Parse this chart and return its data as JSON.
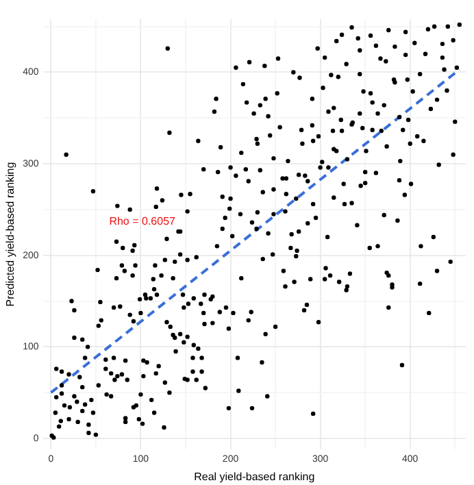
{
  "chart_data": {
    "type": "scatter",
    "xlabel": "Real yield-based ranking",
    "ylabel": "Predicted yield-based ranking",
    "annotations": [
      "Rho = 0.6057"
    ],
    "xlim": [
      -9,
      462
    ],
    "ylim": [
      -12,
      458
    ],
    "xticks": [
      0,
      {
        "value": 50,
        "label": null
      },
      100,
      {
        "value": 150,
        "label": null
      },
      200,
      {
        "value": 250,
        "label": null
      },
      300,
      {
        "value": 350,
        "label": null
      },
      400,
      {
        "value": 450,
        "label": null
      }
    ],
    "yticks": [
      0,
      {
        "value": 50,
        "label": null
      },
      100,
      {
        "value": 150,
        "label": null
      },
      200,
      {
        "value": 250,
        "label": null
      },
      300,
      {
        "value": 350,
        "label": null
      },
      400,
      {
        "value": 450,
        "label": null
      }
    ],
    "grid": true,
    "legend": false,
    "marker": "circle",
    "series": [
      {
        "color": "#000000",
        "x": [
          130,
          206,
          221,
          214,
          184,
          182,
          218,
          132,
          164,
          189,
          17,
          212,
          170,
          186,
          200,
          217,
          206,
          220,
          47,
          118,
          74,
          88,
          117,
          124,
          145,
          155,
          152,
          191,
          200,
          199,
          194,
          211,
          144,
          191,
          238,
          253,
          297,
          305,
          318,
          324,
          335,
          342,
          356,
          362,
          376,
          383,
          395,
          405,
          420,
          427,
          442,
          455,
          448,
          436,
          417,
          395,
          367,
          373,
          344,
          329,
          277,
          270,
          303,
          312,
          320,
          344,
          382,
          397,
          411,
          436,
          438,
          452,
          441,
          430,
          423,
          403,
          383,
          348,
          356,
          291,
          309,
          315,
          323,
          336,
          344,
          358,
          364,
          371,
          388,
          398,
          450,
          226,
          233,
          239,
          252,
          242,
          255,
          244,
          279,
          291,
          314,
          324,
          335,
          347,
          358,
          229,
          230,
          248,
          264,
          280,
          292,
          298,
          315,
          318,
          330,
          351,
          368,
          374,
          392,
          400,
          408,
          415,
          448,
          432,
          389,
          233,
          236,
          248,
          258,
          262,
          276,
          286,
          283,
          302,
          300,
          309,
          326,
          345,
          350,
          362,
          350,
          388,
          401,
          394,
          315,
          327,
          335,
          292,
          262,
          273,
          261,
          248,
          295,
          286,
          268,
          276,
          341,
          371,
          386,
          308,
          426,
          242,
          229,
          224,
          230,
          1,
          3,
          9,
          11,
          5,
          6,
          6,
          12,
          12,
          15,
          20,
          21,
          26,
          29,
          30,
          35,
          38,
          42,
          42,
          47,
          50,
          45,
          53,
          35,
          32,
          38,
          41,
          35,
          26,
          23,
          26,
          12,
          20,
          53,
          56,
          55,
          52,
          61,
          61,
          70,
          67,
          71,
          67,
          62,
          74,
          79,
          83,
          85,
          70,
          77,
          73,
          73,
          79,
          82,
          80,
          93,
          94,
          91,
          91,
          88,
          92,
          100,
          99,
          105,
          106,
          111,
          115,
          116,
          103,
          107,
          103,
          100,
          95,
          83,
          83,
          98,
          92,
          102,
          117,
          112,
          115,
          126,
          132,
          127,
          120,
          129,
          133,
          136,
          138,
          144,
          152,
          148,
          159,
          164,
          158,
          168,
          158,
          168,
          162,
          172,
          149,
          152,
          139,
          148,
          147,
          153,
          159,
          167,
          170,
          171,
          180,
          180,
          188,
          195,
          203,
          198,
          208,
          209,
          198,
          224,
          212,
          220,
          136,
          127,
          138,
          144,
          152,
          162,
          129,
          142,
          118,
          185,
          202,
          171,
          178,
          114,
          123,
          267,
          274,
          273,
          247,
          236,
          259,
          261,
          271,
          289,
          306,
          305,
          311,
          321,
          333,
          330,
          329,
          355,
          364,
          374,
          376,
          380,
          380,
          376,
          412,
          445,
          430,
          411,
          421,
          391,
          285,
          282,
          298,
          223,
          239,
          250,
          235,
          241,
          292
        ],
        "values": [
          426,
          405,
          411,
          387,
          371,
          357,
          367,
          334,
          325,
          318,
          310,
          312,
          294,
          291,
          296,
          294,
          287,
          281,
          270,
          273,
          254,
          250,
          253,
          260,
          266,
          267,
          248,
          264,
          262,
          251,
          241,
          245,
          226,
          229,
          407,
          415,
          426,
          416,
          434,
          441,
          449,
          437,
          440,
          429,
          446,
          428,
          444,
          432,
          447,
          450,
          450,
          452,
          435,
          431,
          420,
          419,
          415,
          412,
          424,
          409,
          394,
          400,
          383,
          397,
          395,
          398,
          392,
          392,
          398,
          416,
          403,
          405,
          380,
          370,
          360,
          379,
          389,
          379,
          377,
          371,
          357,
          361,
          348,
          345,
          355,
          367,
          355,
          364,
          351,
          348,
          346,
          355,
          364,
          371,
          377,
          352,
          340,
          331,
          337,
          342,
          336,
          336,
          343,
          339,
          337,
          327,
          322,
          306,
          303,
          322,
          325,
          330,
          316,
          314,
          305,
          314,
          336,
          319,
          337,
          322,
          330,
          325,
          310,
          299,
          303,
          293,
          269,
          272,
          284,
          284,
          288,
          281,
          287,
          302,
          296,
          296,
          278,
          276,
          291,
          290,
          279,
          282,
          278,
          266,
          263,
          256,
          257,
          256,
          267,
          262,
          248,
          245,
          241,
          235,
          223,
          226,
          233,
          244,
          238,
          220,
          220,
          224,
          229,
          236,
          247,
          3,
          1,
          13,
          19,
          28,
          45,
          76,
          58,
          49,
          36,
          21,
          34,
          46,
          40,
          18,
          30,
          37,
          15,
          6,
          28,
          4,
          42,
          58,
          56,
          67,
          88,
          100,
          108,
          110,
          150,
          140,
          73,
          70,
          123,
          129,
          149,
          184,
          86,
          76,
          88,
          71,
          64,
          46,
          48,
          68,
          70,
          85,
          64,
          143,
          144,
          175,
          215,
          189,
          183,
          208,
          211,
          189,
          178,
          205,
          135,
          128,
          137,
          152,
          157,
          153,
          153,
          163,
          189,
          85,
          83,
          68,
          48,
          36,
          22,
          18,
          21,
          34,
          16,
          71,
          42,
          28,
          12,
          50,
          61,
          79,
          127,
          122,
          113,
          110,
          114,
          111,
          105,
          102,
          98,
          88,
          88,
          73,
          73,
          64,
          55,
          65,
          64,
          95,
          143,
          157,
          147,
          153,
          147,
          137,
          125,
          126,
          155,
          138,
          143,
          137,
          120,
          88,
          52,
          33,
          33,
          175,
          129,
          175,
          195,
          193,
          201,
          195,
          198,
          218,
          226,
          157,
          210,
          221,
          157,
          152,
          174,
          178,
          208,
          205,
          199,
          201,
          196,
          183,
          166,
          171,
          174,
          186,
          174,
          178,
          171,
          180,
          166,
          162,
          208,
          210,
          181,
          178,
          168,
          165,
          143,
          210,
          193,
          183,
          169,
          137,
          80,
          146,
          140,
          127,
          138,
          114,
          122,
          83,
          46,
          27
        ]
      },
      {
        "type": "line",
        "color": "#3a6fd8",
        "line_style": "dashed",
        "marker": "none",
        "x": [
          0,
          455
        ],
        "values": [
          50,
          403
        ]
      }
    ]
  }
}
